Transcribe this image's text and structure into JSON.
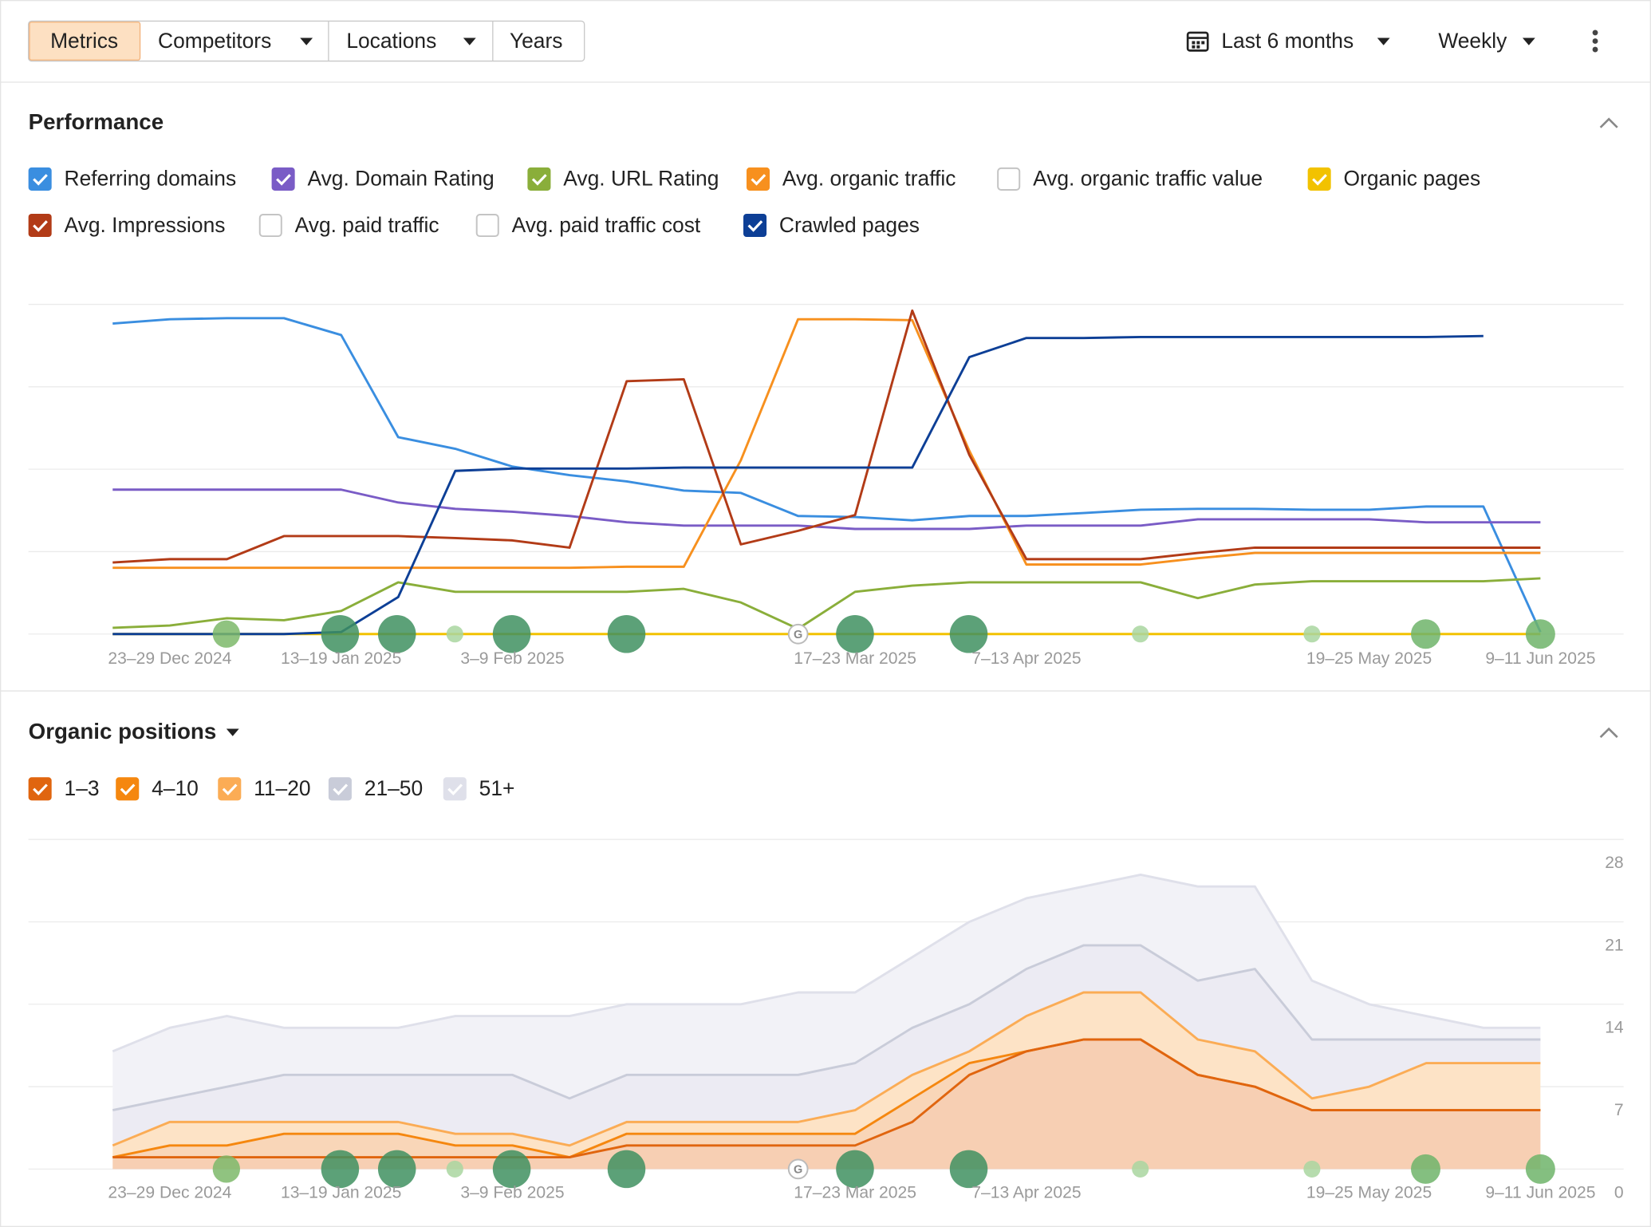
{
  "toolbar": {
    "buttons": [
      "Metrics",
      "Competitors",
      "Locations",
      "Years"
    ],
    "period": "Last 6 months",
    "interval": "Weekly"
  },
  "chart_data": [
    {
      "type": "line",
      "title": "Performance",
      "ylim": [
        0,
        100
      ],
      "categories": [
        null,
        "23–29 Dec 2024",
        null,
        null,
        "13–19 Jan 2025",
        null,
        null,
        "3–9 Feb 2025",
        null,
        null,
        null,
        null,
        null,
        "17–23 Mar 2025",
        null,
        null,
        "7–13 Apr 2025",
        null,
        null,
        null,
        null,
        null,
        "19–25 May 2025",
        null,
        null,
        "9–11 Jun 2025"
      ],
      "series": [
        {
          "name": "Referring domains",
          "checked": true,
          "color": "#3a8ee0",
          "values": [
            94.2,
            95.5,
            95.8,
            95.8,
            90.7,
            59.7,
            56.2,
            50.8,
            48.2,
            46.3,
            43.5,
            42.8,
            35.8,
            35.5,
            34.5,
            35.8,
            35.8,
            36.7,
            37.7,
            38.0,
            38.0,
            37.7,
            37.7,
            38.7,
            38.7,
            0.6
          ]
        },
        {
          "name": "Avg. Domain Rating",
          "checked": true,
          "color": "#7a5cc6",
          "values": [
            43.8,
            43.8,
            43.8,
            43.8,
            43.8,
            39.9,
            38.0,
            37.1,
            35.8,
            33.9,
            32.9,
            32.9,
            32.9,
            31.9,
            31.9,
            31.9,
            32.9,
            32.9,
            32.9,
            34.8,
            34.8,
            34.8,
            34.8,
            33.9,
            33.9,
            33.9
          ]
        },
        {
          "name": "Avg. URL Rating",
          "checked": true,
          "color": "#8aae3a",
          "values": [
            1.9,
            2.6,
            4.8,
            4.2,
            7.0,
            15.7,
            12.8,
            12.8,
            12.8,
            12.8,
            13.7,
            9.6,
            1.6,
            12.8,
            14.7,
            15.7,
            15.7,
            15.7,
            15.7,
            10.9,
            15.0,
            16.0,
            16.0,
            16.0,
            16.0,
            16.9
          ]
        },
        {
          "name": "Avg. organic traffic",
          "checked": true,
          "color": "#f7901e",
          "values": [
            20.1,
            20.1,
            20.1,
            20.1,
            20.1,
            20.1,
            20.1,
            20.1,
            20.1,
            20.4,
            20.4,
            52.7,
            95.5,
            95.5,
            95.2,
            55.6,
            21.1,
            21.1,
            21.1,
            23.0,
            24.6,
            24.6,
            24.6,
            24.6,
            24.6,
            24.6
          ]
        },
        {
          "name": "Avg. organic traffic value",
          "checked": false
        },
        {
          "name": "Organic pages",
          "checked": true,
          "color": "#f2c200",
          "values": [
            0,
            0,
            0,
            0,
            0,
            0,
            0,
            0,
            0,
            0,
            0,
            0,
            0,
            0,
            0,
            0,
            0,
            0,
            0,
            0,
            0,
            0,
            0,
            0,
            0,
            0
          ]
        },
        {
          "name": "Avg. Impressions",
          "checked": true,
          "color": "#b23b17",
          "values": [
            21.7,
            22.7,
            22.7,
            29.7,
            29.7,
            29.7,
            29.1,
            28.4,
            26.2,
            76.7,
            77.3,
            27.2,
            31.3,
            36.1,
            98.1,
            54.3,
            22.7,
            22.7,
            22.7,
            24.6,
            26.2,
            26.2,
            26.2,
            26.2,
            26.2,
            26.2
          ]
        },
        {
          "name": "Avg. paid traffic",
          "checked": false
        },
        {
          "name": "Avg. paid traffic cost",
          "checked": false
        },
        {
          "name": "Crawled pages",
          "checked": true,
          "color": "#0d3f96",
          "values": [
            0,
            0,
            0,
            0,
            0.6,
            11.2,
            49.5,
            50.2,
            50.2,
            50.2,
            50.5,
            50.5,
            50.5,
            50.5,
            50.5,
            84.0,
            89.8,
            89.8,
            90.1,
            90.1,
            90.1,
            90.1,
            90.1,
            90.1,
            90.4,
            null
          ]
        }
      ]
    },
    {
      "type": "stacked-area",
      "title": "Organic positions",
      "ylim": [
        0,
        28
      ],
      "yticks": [
        0,
        7,
        14,
        21,
        28
      ],
      "categories": [
        null,
        "23–29 Dec 2024",
        null,
        null,
        "13–19 Jan 2025",
        null,
        null,
        "3–9 Feb 2025",
        null,
        null,
        null,
        null,
        null,
        "17–23 Mar 2025",
        null,
        null,
        "7–13 Apr 2025",
        null,
        null,
        null,
        null,
        null,
        "19–25 May 2025",
        null,
        null,
        "9–11 Jun 2025"
      ],
      "series": [
        {
          "name": "1–3",
          "checked": true,
          "color": "#e0650f",
          "values": [
            1,
            1,
            1,
            1,
            1,
            1,
            1,
            1,
            1,
            2,
            2,
            2,
            2,
            2,
            4,
            8,
            10,
            11,
            11,
            8,
            7,
            5,
            5,
            5,
            5,
            5
          ]
        },
        {
          "name": "4–10",
          "checked": true,
          "color": "#f5870f",
          "values": [
            0,
            1,
            1,
            2,
            2,
            2,
            1,
            1,
            0,
            1,
            1,
            1,
            1,
            1,
            2,
            1,
            0,
            0,
            0,
            0,
            0,
            0,
            0,
            0,
            0,
            0
          ]
        },
        {
          "name": "11–20",
          "checked": true,
          "color": "#fbac55",
          "values": [
            1,
            2,
            2,
            1,
            1,
            1,
            1,
            1,
            1,
            1,
            1,
            1,
            1,
            2,
            2,
            1,
            3,
            4,
            4,
            3,
            3,
            1,
            2,
            4,
            4,
            4
          ]
        },
        {
          "name": "21–50",
          "checked": true,
          "color": "#c9ccd9",
          "values": [
            3,
            2,
            3,
            4,
            4,
            4,
            5,
            5,
            4,
            4,
            4,
            4,
            4,
            4,
            4,
            4,
            4,
            4,
            4,
            5,
            7,
            5,
            4,
            2,
            2,
            2
          ]
        },
        {
          "name": "51+",
          "checked": true,
          "color": "#dfe0ea",
          "values": [
            5,
            6,
            6,
            4,
            4,
            4,
            5,
            5,
            7,
            6,
            6,
            6,
            7,
            6,
            6,
            7,
            6,
            5,
            6,
            8,
            7,
            5,
            3,
            2,
            1,
            1
          ]
        }
      ]
    }
  ]
}
